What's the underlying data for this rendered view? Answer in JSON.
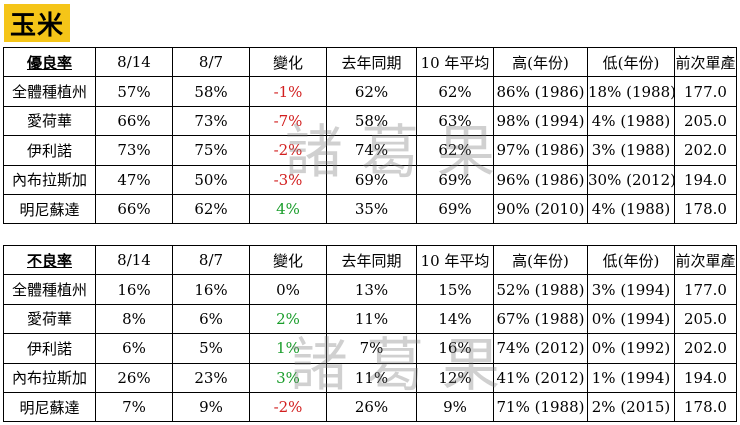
{
  "title": "玉米",
  "headers": [
    "8/14",
    "8/7",
    "變化",
    "去年同期",
    "10 年平均",
    "高(年份)",
    "低(年份)",
    "前次單產"
  ],
  "good": {
    "label": "優良率",
    "rows": [
      {
        "name": "全體種植州",
        "c0": "57%",
        "c1": "58%",
        "change": "-1%",
        "dir": "neg",
        "c3": "62%",
        "c4": "62%",
        "c5": "86% (1986)",
        "c6": "18% (1988)",
        "c7": "177.0"
      },
      {
        "name": "愛荷華",
        "c0": "66%",
        "c1": "73%",
        "change": "-7%",
        "dir": "neg",
        "c3": "58%",
        "c4": "63%",
        "c5": "98% (1994)",
        "c6": "4% (1988)",
        "c7": "205.0"
      },
      {
        "name": "伊利諾",
        "c0": "73%",
        "c1": "75%",
        "change": "-2%",
        "dir": "neg",
        "c3": "74%",
        "c4": "62%",
        "c5": "97% (1986)",
        "c6": "3% (1988)",
        "c7": "202.0"
      },
      {
        "name": "內布拉斯加",
        "c0": "47%",
        "c1": "50%",
        "change": "-3%",
        "dir": "neg",
        "c3": "69%",
        "c4": "69%",
        "c5": "96% (1986)",
        "c6": "30% (2012)",
        "c7": "194.0"
      },
      {
        "name": "明尼蘇達",
        "c0": "66%",
        "c1": "62%",
        "change": "4%",
        "dir": "pos",
        "c3": "35%",
        "c4": "69%",
        "c5": "90% (2010)",
        "c6": "4% (1988)",
        "c7": "178.0"
      }
    ]
  },
  "bad": {
    "label": "不良率",
    "rows": [
      {
        "name": "全體種植州",
        "c0": "16%",
        "c1": "16%",
        "change": "0%",
        "dir": "flat",
        "c3": "13%",
        "c4": "15%",
        "c5": "52% (1988)",
        "c6": "3% (1994)",
        "c7": "177.0"
      },
      {
        "name": "愛荷華",
        "c0": "8%",
        "c1": "6%",
        "change": "2%",
        "dir": "pos",
        "c3": "11%",
        "c4": "14%",
        "c5": "67% (1988)",
        "c6": "0% (1994)",
        "c7": "205.0"
      },
      {
        "name": "伊利諾",
        "c0": "6%",
        "c1": "5%",
        "change": "1%",
        "dir": "pos",
        "c3": "7%",
        "c4": "16%",
        "c5": "74% (2012)",
        "c6": "0% (1992)",
        "c7": "202.0"
      },
      {
        "name": "內布拉斯加",
        "c0": "26%",
        "c1": "23%",
        "change": "3%",
        "dir": "pos",
        "c3": "11%",
        "c4": "12%",
        "c5": "41% (2012)",
        "c6": "1% (1994)",
        "c7": "194.0"
      },
      {
        "name": "明尼蘇達",
        "c0": "7%",
        "c1": "9%",
        "change": "-2%",
        "dir": "neg",
        "c3": "26%",
        "c4": "9%",
        "c5": "71% (1988)",
        "c6": "2% (2015)",
        "c7": "178.0"
      }
    ]
  },
  "watermark": "諸葛果",
  "colors": {
    "badge": "#f5c518",
    "positive": "#1a9d2b",
    "negative": "#d21f1f"
  }
}
